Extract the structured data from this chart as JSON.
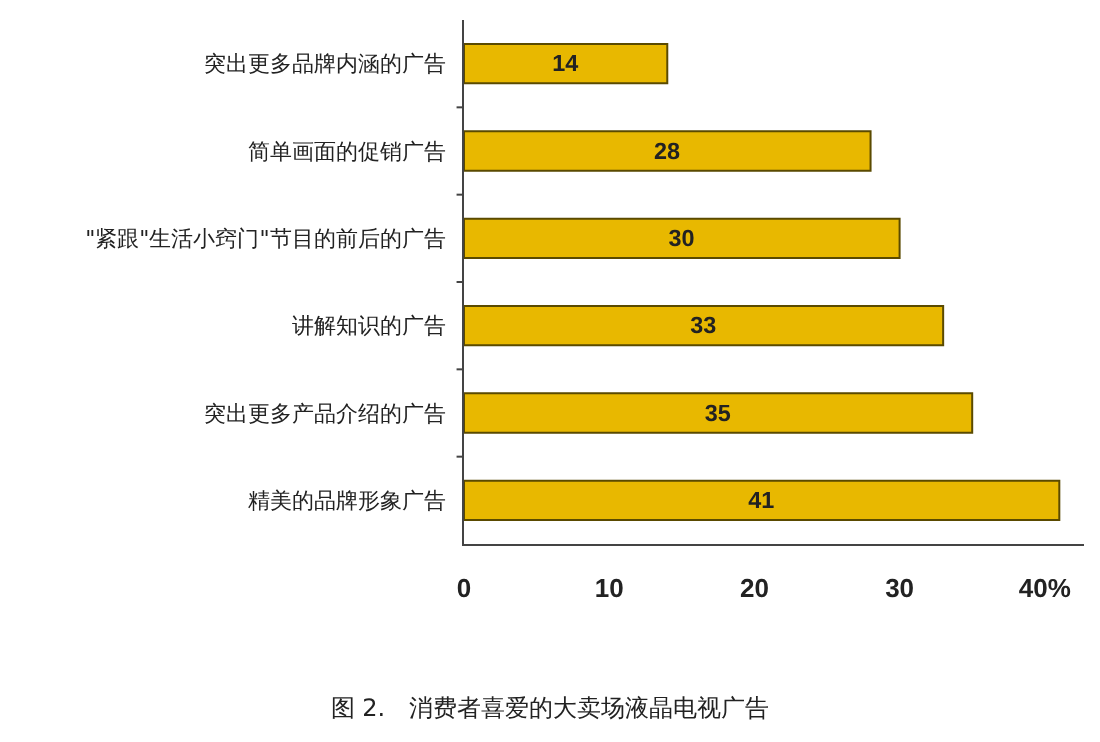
{
  "chart_data": {
    "type": "bar",
    "orientation": "horizontal",
    "title": "图 2.　消费者喜爱的大卖场液晶电视广告",
    "categories": [
      "突出更多品牌内涵的广告",
      "简单画面的促销广告",
      "\"紧跟\"生活小窍门\"节目的前后的广告",
      "讲解知识的广告",
      "突出更多产品介绍的广告",
      "精美的品牌形象广告"
    ],
    "values": [
      14,
      28,
      30,
      33,
      35,
      41
    ],
    "color": "#e8b800",
    "xlim": [
      0,
      42.7
    ],
    "xticks": [
      0,
      10,
      20,
      30,
      {
        "value": 40,
        "label": "40%"
      }
    ],
    "data_labels": true,
    "grid": false
  }
}
